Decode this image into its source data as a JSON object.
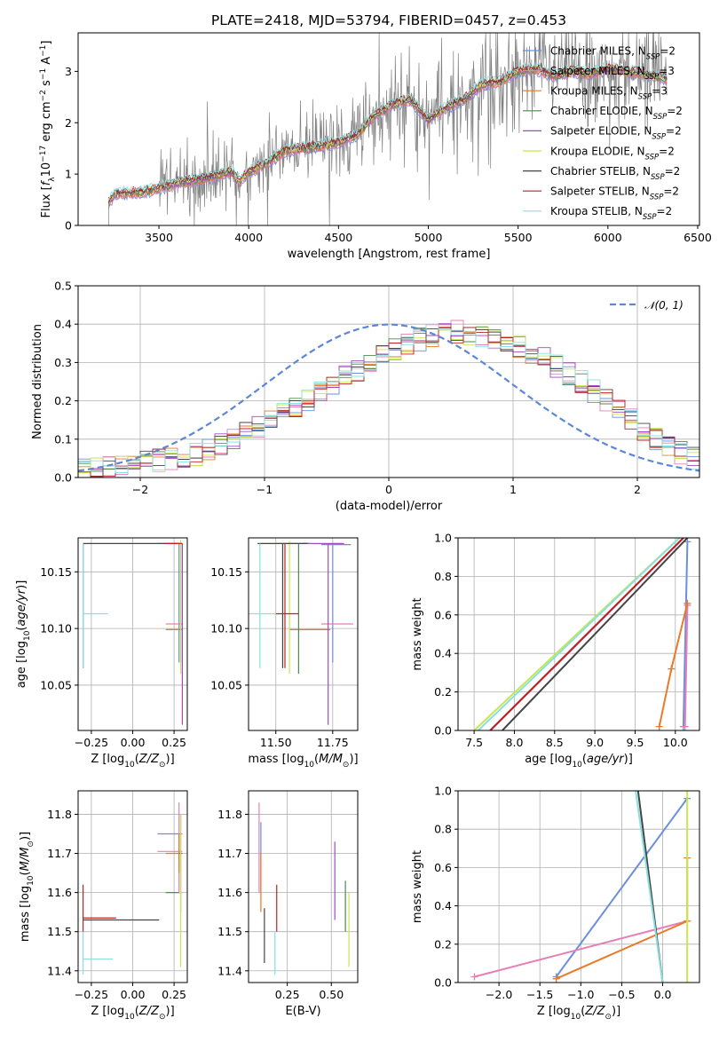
{
  "figure": {
    "title": "PLATE=2418, MJD=53794, FIBERID=0457, z=0.453"
  },
  "colors": {
    "Chabrier MILES": "#6a8fdc",
    "Salpeter MILES": "#e77fb6",
    "Kroupa MILES": "#e87a2a",
    "Chabrier ELODIE": "#4e8a4e",
    "Salpeter ELODIE": "#a24ac4",
    "Kroupa ELODIE": "#c8e650",
    "Chabrier STELIB": "#444444",
    "Salpeter STELIB": "#c02020",
    "Kroupa STELIB": "#88e0e0",
    "normal": "#5b87d6"
  },
  "chart_data": [
    {
      "id": "spectrum",
      "type": "line",
      "xlabel": "wavelength [Angstrom, rest frame]",
      "ylabel": "Flux [f_λ 10^-17 erg cm^-2 s^-1 A^-1]",
      "xlim": [
        3050,
        6510
      ],
      "ylim": [
        0,
        3.75
      ],
      "xticks": [
        3500,
        4000,
        4500,
        5000,
        5500,
        6000,
        6500
      ],
      "yticks": [
        0,
        1,
        2,
        3
      ],
      "grid": false,
      "legend_position": "top-right",
      "legend": [
        {
          "name": "Chabrier MILES",
          "nssp": "2"
        },
        {
          "name": "Salpeter MILES",
          "nssp": "3"
        },
        {
          "name": "Kroupa MILES",
          "nssp": "3"
        },
        {
          "name": "Chabrier ELODIE",
          "nssp": "2"
        },
        {
          "name": "Salpeter ELODIE",
          "nssp": "2"
        },
        {
          "name": "Kroupa ELODIE",
          "nssp": "2"
        },
        {
          "name": "Chabrier STELIB",
          "nssp": "2"
        },
        {
          "name": "Salpeter STELIB",
          "nssp": "2"
        },
        {
          "name": "Kroupa STELIB",
          "nssp": "2"
        }
      ],
      "data_series": {
        "name": "data",
        "color": "#808080",
        "x_range": [
          3220,
          6330
        ]
      },
      "model_continuum": {
        "x": [
          3220,
          3260,
          3400,
          3500,
          3600,
          3700,
          3800,
          3900,
          3950,
          4000,
          4100,
          4200,
          4300,
          4400,
          4500,
          4600,
          4700,
          4800,
          4900,
          5000,
          5100,
          5200,
          5300,
          5400,
          5500,
          5600,
          5700,
          5800,
          5900,
          6000,
          6100,
          6200,
          6330
        ],
        "y": [
          0.45,
          0.62,
          0.65,
          0.72,
          0.82,
          0.88,
          0.95,
          1.05,
          0.85,
          1.05,
          1.2,
          1.45,
          1.5,
          1.55,
          1.62,
          1.75,
          2.15,
          2.35,
          2.45,
          2.05,
          2.3,
          2.45,
          2.75,
          2.8,
          3.0,
          3.05,
          2.9,
          3.0,
          2.95,
          3.05,
          3.0,
          2.95,
          2.85
        ]
      }
    },
    {
      "id": "residuals",
      "type": "line",
      "xlabel": "(data-model)/error",
      "ylabel": "Normed distribution",
      "xlim": [
        -2.5,
        2.5
      ],
      "ylim": [
        0,
        0.5
      ],
      "xticks": [
        -2,
        -1,
        0,
        1,
        2
      ],
      "yticks": [
        0.0,
        0.1,
        0.2,
        0.3,
        0.4,
        0.5
      ],
      "grid": true,
      "legend_position": "top-right",
      "legend": [
        {
          "name": "𝒩(0, 1)",
          "style": "dashed"
        }
      ],
      "normal_curve": {
        "mean": 0,
        "sigma": 1
      },
      "histogram_bins": {
        "start": -2.5,
        "width": 0.1,
        "count": 50
      },
      "histogram_base": [
        0.02,
        0.025,
        0.03,
        0.035,
        0.04,
        0.04,
        0.045,
        0.05,
        0.055,
        0.06,
        0.07,
        0.085,
        0.1,
        0.115,
        0.13,
        0.15,
        0.165,
        0.18,
        0.2,
        0.22,
        0.245,
        0.265,
        0.28,
        0.3,
        0.32,
        0.335,
        0.35,
        0.36,
        0.37,
        0.375,
        0.38,
        0.375,
        0.37,
        0.36,
        0.35,
        0.34,
        0.325,
        0.31,
        0.29,
        0.27,
        0.25,
        0.225,
        0.2,
        0.175,
        0.15,
        0.125,
        0.1,
        0.08,
        0.065,
        0.05
      ]
    },
    {
      "id": "age-vs-Z",
      "type": "scatter",
      "xlabel": "Z [log10(Z/Z⊙)]",
      "ylabel": "age [log10(age/yr)]",
      "xlim": [
        -0.33,
        0.33
      ],
      "ylim": [
        10.01,
        10.18
      ],
      "xticks": [
        -0.25,
        0.0,
        0.25
      ],
      "xtick_labels": [
        "−0.25",
        "0.00",
        "0.25"
      ],
      "yticks": [
        10.05,
        10.1,
        10.15
      ],
      "grid": true,
      "points": [
        {
          "model": "Chabrier MILES",
          "x": 0.28,
          "y": 10.175,
          "ex": [
            0.15,
            0.3
          ],
          "ey": [
            10.07,
            10.175
          ]
        },
        {
          "model": "Salpeter MILES",
          "x": 0.28,
          "y": 10.104,
          "ex": [
            0.2,
            0.3
          ],
          "ey": [
            10.104,
            10.104
          ]
        },
        {
          "model": "Kroupa MILES",
          "x": 0.28,
          "y": 10.099,
          "ex": [
            0.2,
            0.3
          ],
          "ey": [
            10.099,
            10.099
          ]
        },
        {
          "model": "Chabrier ELODIE",
          "x": 0.29,
          "y": 10.175,
          "ex": [
            0.28,
            0.3
          ],
          "ey": [
            10.07,
            10.175
          ]
        },
        {
          "model": "Salpeter ELODIE",
          "x": 0.3,
          "y": 10.175,
          "ex": [
            0.3,
            0.3
          ],
          "ey": [
            10.015,
            10.175
          ]
        },
        {
          "model": "Kroupa ELODIE",
          "x": 0.29,
          "y": 10.175,
          "ex": [
            0.28,
            0.3
          ],
          "ey": [
            10.06,
            10.178
          ]
        },
        {
          "model": "Chabrier STELIB",
          "x": -0.3,
          "y": 10.175,
          "ex": [
            -0.3,
            0.28
          ],
          "ey": [
            10.065,
            10.175
          ]
        },
        {
          "model": "Salpeter STELIB",
          "x": 0.28,
          "y": 10.175,
          "ex": [
            0.2,
            0.3
          ],
          "ey": [
            10.175,
            10.175
          ]
        },
        {
          "model": "Kroupa STELIB",
          "x": -0.3,
          "y": 10.113,
          "ex": [
            -0.3,
            -0.15
          ],
          "ey": [
            10.065,
            10.175
          ]
        }
      ]
    },
    {
      "id": "age-vs-mass",
      "type": "scatter",
      "xlabel": "mass [log10(M/M⊙)]",
      "ylabel": "",
      "xlim": [
        11.38,
        11.86
      ],
      "ylim": [
        10.01,
        10.18
      ],
      "xticks": [
        11.5,
        11.75
      ],
      "yticks": [
        10.05,
        10.1,
        10.15
      ],
      "grid": true,
      "points": [
        {
          "model": "Chabrier MILES",
          "x": 11.75,
          "y": 10.174,
          "ex": [
            11.7,
            11.83
          ],
          "ey": [
            10.07,
            10.174
          ]
        },
        {
          "model": "Salpeter MILES",
          "x": 11.78,
          "y": 10.104,
          "ex": [
            11.7,
            11.84
          ],
          "ey": [
            10.104,
            10.104
          ]
        },
        {
          "model": "Kroupa MILES",
          "x": 11.65,
          "y": 10.099,
          "ex": [
            11.56,
            11.74
          ],
          "ey": [
            10.099,
            10.099
          ]
        },
        {
          "model": "Chabrier ELODIE",
          "x": 11.6,
          "y": 10.175,
          "ex": [
            11.5,
            11.65
          ],
          "ey": [
            10.06,
            10.175
          ]
        },
        {
          "model": "Salpeter ELODIE",
          "x": 11.73,
          "y": 10.175,
          "ex": [
            11.55,
            11.8
          ],
          "ey": [
            10.015,
            10.175
          ]
        },
        {
          "model": "Kroupa ELODIE",
          "x": 11.56,
          "y": 10.175,
          "ex": [
            11.44,
            11.62
          ],
          "ey": [
            10.06,
            10.177
          ]
        },
        {
          "model": "Chabrier STELIB",
          "x": 11.53,
          "y": 10.175,
          "ex": [
            11.42,
            11.64
          ],
          "ey": [
            10.065,
            10.175
          ]
        },
        {
          "model": "Salpeter STELIB",
          "x": 11.54,
          "y": 10.113,
          "ex": [
            11.5,
            11.6
          ],
          "ey": [
            10.065,
            10.175
          ]
        },
        {
          "model": "Kroupa STELIB",
          "x": 11.43,
          "y": 10.113,
          "ex": [
            11.38,
            11.5
          ],
          "ey": [
            10.065,
            10.175
          ]
        }
      ]
    },
    {
      "id": "massweight-vs-age",
      "type": "line",
      "xlabel": "age [log10(age/yr)]",
      "ylabel": "mass weight",
      "xlim": [
        7.3,
        10.3
      ],
      "ylim": [
        0,
        1.0
      ],
      "xticks": [
        7.5,
        8.0,
        8.5,
        9.0,
        9.5,
        10.0
      ],
      "yticks": [
        0.0,
        0.2,
        0.4,
        0.6,
        0.8,
        1.0
      ],
      "grid": true,
      "series": [
        {
          "model": "Chabrier MILES",
          "x": [
            10.1,
            10.15
          ],
          "y": [
            0.02,
            0.98
          ],
          "markers": true
        },
        {
          "model": "Salpeter MILES",
          "x": [
            10.12,
            10.15
          ],
          "y": [
            0.02,
            0.65
          ],
          "markers": true
        },
        {
          "model": "Kroupa MILES",
          "x": [
            9.8,
            9.95,
            10.15
          ],
          "y": [
            0.02,
            0.32,
            0.66
          ],
          "markers": true
        },
        {
          "model": "Chabrier ELODIE",
          "x": [
            7.7,
            10.1
          ],
          "y": [
            0.0,
            1.0
          ]
        },
        {
          "model": "Salpeter ELODIE",
          "x": [
            7.7,
            10.1
          ],
          "y": [
            0.0,
            1.0
          ]
        },
        {
          "model": "Kroupa ELODIE",
          "x": [
            7.5,
            10.05
          ],
          "y": [
            0.0,
            1.0
          ]
        },
        {
          "model": "Chabrier STELIB",
          "x": [
            7.85,
            10.15
          ],
          "y": [
            0.0,
            1.0
          ]
        },
        {
          "model": "Salpeter STELIB",
          "x": [
            7.7,
            10.1
          ],
          "y": [
            0.0,
            1.0
          ]
        },
        {
          "model": "Kroupa STELIB",
          "x": [
            7.55,
            10.05
          ],
          "y": [
            0.0,
            1.0
          ]
        }
      ]
    },
    {
      "id": "mass-vs-Z",
      "type": "scatter",
      "xlabel": "Z [log10(Z/Z⊙)]",
      "ylabel": "mass [log10(M/M⊙)]",
      "xlim": [
        -0.33,
        0.33
      ],
      "ylim": [
        11.37,
        11.86
      ],
      "xticks": [
        -0.25,
        0.0,
        0.25
      ],
      "xtick_labels": [
        "−0.25",
        "0.00",
        "0.25"
      ],
      "yticks": [
        11.4,
        11.5,
        11.6,
        11.7,
        11.8
      ],
      "grid": true,
      "points": [
        {
          "model": "Chabrier MILES",
          "x": 0.28,
          "y": 11.75,
          "ex": [
            0.15,
            0.3
          ],
          "ey": [
            11.75,
            11.75
          ]
        },
        {
          "model": "Salpeter MILES",
          "x": 0.28,
          "y": 11.705,
          "ex": [
            0.15,
            0.3
          ],
          "ey": [
            11.6,
            11.83
          ]
        },
        {
          "model": "Kroupa MILES",
          "x": 0.28,
          "y": 11.7,
          "ex": [
            0.2,
            0.3
          ],
          "ey": [
            11.65,
            11.75
          ]
        },
        {
          "model": "Chabrier ELODIE",
          "x": 0.28,
          "y": 11.6,
          "ex": [
            0.2,
            0.3
          ],
          "ey": [
            11.6,
            11.6
          ]
        },
        {
          "model": "Salpeter ELODIE",
          "x": 0.29,
          "y": 11.7,
          "ex": [
            0.28,
            0.3
          ],
          "ey": [
            11.55,
            11.8
          ]
        },
        {
          "model": "Kroupa ELODIE",
          "x": 0.29,
          "y": 11.6,
          "ex": [
            0.28,
            0.3
          ],
          "ey": [
            11.41,
            11.8
          ]
        },
        {
          "model": "Chabrier STELIB",
          "x": -0.3,
          "y": 11.53,
          "ex": [
            -0.3,
            0.16
          ],
          "ey": [
            11.53,
            11.53
          ]
        },
        {
          "model": "Salpeter STELIB",
          "x": -0.3,
          "y": 11.535,
          "ex": [
            -0.3,
            -0.1
          ],
          "ey": [
            11.5,
            11.62
          ]
        },
        {
          "model": "Kroupa STELIB",
          "x": -0.3,
          "y": 11.43,
          "ex": [
            -0.3,
            -0.12
          ],
          "ey": [
            11.39,
            11.5
          ]
        }
      ]
    },
    {
      "id": "mass-vs-EBV",
      "type": "scatter",
      "xlabel": "E(B-V)",
      "ylabel": "",
      "xlim": [
        0.03,
        0.65
      ],
      "ylim": [
        11.37,
        11.86
      ],
      "xticks": [
        0.25,
        0.5
      ],
      "yticks": [
        11.4,
        11.5,
        11.6,
        11.7,
        11.8
      ],
      "grid": true,
      "points": [
        {
          "model": "Chabrier MILES",
          "ey": [
            11.6,
            11.78
          ],
          "x": 0.1
        },
        {
          "model": "Salpeter MILES",
          "ey": [
            11.6,
            11.83
          ],
          "x": 0.09
        },
        {
          "model": "Kroupa MILES",
          "ey": [
            11.55,
            11.7
          ],
          "x": 0.1
        },
        {
          "model": "Chabrier ELODIE",
          "ey": [
            11.5,
            11.63
          ],
          "x": 0.58
        },
        {
          "model": "Salpeter ELODIE",
          "ey": [
            11.53,
            11.73
          ],
          "x": 0.52
        },
        {
          "model": "Kroupa ELODIE",
          "ey": [
            11.41,
            11.6
          ],
          "x": 0.6
        },
        {
          "model": "Chabrier STELIB",
          "ey": [
            11.42,
            11.56
          ],
          "x": 0.12
        },
        {
          "model": "Salpeter STELIB",
          "ey": [
            11.5,
            11.62
          ],
          "x": 0.19
        },
        {
          "model": "Kroupa STELIB",
          "ey": [
            11.39,
            11.5
          ],
          "x": 0.18
        }
      ]
    },
    {
      "id": "massweight-vs-Z",
      "type": "line",
      "xlabel": "Z [log10(Z/Z⊙)]",
      "ylabel": "mass weight",
      "xlim": [
        -2.5,
        0.45
      ],
      "ylim": [
        0,
        1.0
      ],
      "xticks": [
        -2.0,
        -1.5,
        -1.0,
        -0.5,
        0.0
      ],
      "xtick_labels": [
        "−2.0",
        "−1.5",
        "−1.0",
        "−0.5",
        "0.0"
      ],
      "yticks": [
        0.0,
        0.2,
        0.4,
        0.6,
        0.8,
        1.0
      ],
      "grid": true,
      "series": [
        {
          "model": "Chabrier MILES",
          "x": [
            -1.3,
            0.3
          ],
          "y": [
            0.03,
            0.96
          ],
          "markers": true
        },
        {
          "model": "Salpeter MILES",
          "x": [
            -2.3,
            0.3
          ],
          "y": [
            0.03,
            0.32
          ],
          "markers": true
        },
        {
          "model": "Kroupa MILES",
          "x": [
            -1.3,
            0.3,
            0.3
          ],
          "y": [
            0.02,
            0.32,
            0.65
          ],
          "markers": true
        },
        {
          "model": "Kroupa ELODIE",
          "x": [
            0.3,
            0.3
          ],
          "y": [
            0.0,
            1.0
          ]
        },
        {
          "model": "Chabrier STELIB",
          "x": [
            -0.3,
            0.0
          ],
          "y": [
            1.0,
            0.0
          ]
        },
        {
          "model": "Kroupa STELIB",
          "x": [
            -0.33,
            0.0
          ],
          "y": [
            1.0,
            0.0
          ]
        }
      ]
    }
  ]
}
